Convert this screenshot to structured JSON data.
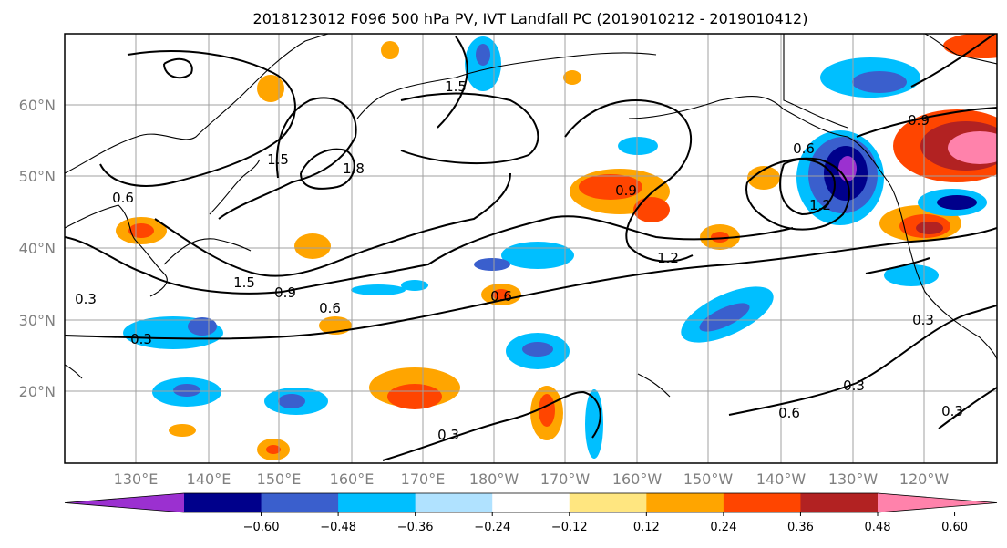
{
  "title": "2018123012 F096 500 hPa PV, IVT Landfall PC (2019010212 - 2019010412)",
  "lat_labels": [
    "60°N",
    "50°N",
    "40°N",
    "30°N",
    "20°N"
  ],
  "lon_labels": [
    "130°E",
    "140°E",
    "150°E",
    "160°E",
    "170°E",
    "180°W",
    "170°W",
    "160°W",
    "150°W",
    "140°W",
    "130°W",
    "120°W"
  ],
  "colorbar": {
    "ticks": [
      "−0.60",
      "−0.48",
      "−0.36",
      "−0.24",
      "−0.12",
      "0.12",
      "0.24",
      "0.36",
      "0.48",
      "0.60"
    ],
    "colors": [
      "#9b30d0",
      "#00008b",
      "#3a5fcd",
      "#00bfff",
      "#b0e2ff",
      "#ffffff",
      "#ffe680",
      "#ffa500",
      "#ff4500",
      "#b22222",
      "#ff82ab"
    ]
  },
  "contour_labels": [
    "0.3",
    "0.6",
    "0.9",
    "1.2",
    "1.5",
    "1.8"
  ],
  "chart_data": {
    "type": "heatmap",
    "title": "2018123012 F096 500 hPa PV, IVT Landfall PC (2019010212 - 2019010412)",
    "variables": {
      "filled": "IVT Landfall PC anomaly",
      "contours": "500 hPa PV"
    },
    "lon_range": [
      "122°E",
      "112°W"
    ],
    "lat_range": [
      "10°N",
      "70°N"
    ],
    "fill_levels": [
      -0.6,
      -0.48,
      -0.36,
      -0.24,
      -0.12,
      0.12,
      0.24,
      0.36,
      0.48,
      0.6
    ],
    "contour_levels": [
      0.3,
      0.6,
      0.9,
      1.2,
      1.5,
      1.8
    ],
    "grid": true
  }
}
